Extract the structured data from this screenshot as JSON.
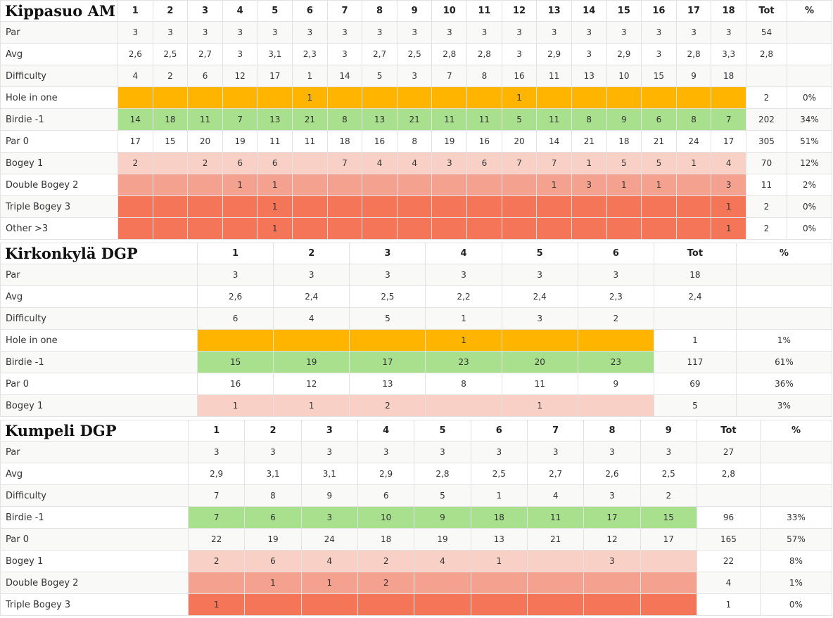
{
  "courses": [
    {
      "name": "Kippasuo AM",
      "holes": [
        "1",
        "2",
        "3",
        "4",
        "5",
        "6",
        "7",
        "8",
        "9",
        "10",
        "11",
        "12",
        "13",
        "14",
        "15",
        "16",
        "17",
        "18"
      ],
      "tot_label": "Tot",
      "pct_label": "%",
      "rows": [
        {
          "label": "Par",
          "type": "par",
          "values": [
            "3",
            "3",
            "3",
            "3",
            "3",
            "3",
            "3",
            "3",
            "3",
            "3",
            "3",
            "3",
            "3",
            "3",
            "3",
            "3",
            "3",
            "3"
          ],
          "tot": "54",
          "pct": ""
        },
        {
          "label": "Avg",
          "type": "avg",
          "values": [
            "2,6",
            "2,5",
            "2,7",
            "3",
            "3,1",
            "2,3",
            "3",
            "2,7",
            "2,5",
            "2,8",
            "2,8",
            "3",
            "2,9",
            "3",
            "2,9",
            "3",
            "2,8",
            "3,3"
          ],
          "tot": "2,8",
          "pct": ""
        },
        {
          "label": "Difficulty",
          "type": "difficulty",
          "values": [
            "4",
            "2",
            "6",
            "12",
            "17",
            "1",
            "14",
            "5",
            "3",
            "7",
            "8",
            "16",
            "11",
            "13",
            "10",
            "15",
            "9",
            "18"
          ],
          "tot": "",
          "pct": ""
        },
        {
          "label": "Hole in one",
          "type": "hio",
          "values": [
            "",
            "",
            "",
            "",
            "",
            "1",
            "",
            "",
            "",
            "",
            "",
            "1",
            "",
            "",
            "",
            "",
            "",
            ""
          ],
          "tot": "2",
          "pct": "0%"
        },
        {
          "label": "Birdie -1",
          "type": "birdie",
          "values": [
            "14",
            "18",
            "11",
            "7",
            "13",
            "21",
            "8",
            "13",
            "21",
            "11",
            "11",
            "5",
            "11",
            "8",
            "9",
            "6",
            "8",
            "7"
          ],
          "tot": "202",
          "pct": "34%"
        },
        {
          "label": "Par 0",
          "type": "parscore",
          "values": [
            "17",
            "15",
            "20",
            "19",
            "11",
            "11",
            "18",
            "16",
            "8",
            "19",
            "16",
            "20",
            "14",
            "21",
            "18",
            "21",
            "24",
            "17"
          ],
          "tot": "305",
          "pct": "51%"
        },
        {
          "label": "Bogey 1",
          "type": "bogey",
          "values": [
            "2",
            "",
            "2",
            "6",
            "6",
            "",
            "7",
            "4",
            "4",
            "3",
            "6",
            "7",
            "7",
            "1",
            "5",
            "5",
            "1",
            "4"
          ],
          "tot": "70",
          "pct": "12%"
        },
        {
          "label": "Double Bogey 2",
          "type": "double",
          "values": [
            "",
            "",
            "",
            "1",
            "1",
            "",
            "",
            "",
            "",
            "",
            "",
            "",
            "1",
            "3",
            "1",
            "1",
            "",
            "3"
          ],
          "tot": "11",
          "pct": "2%"
        },
        {
          "label": "Triple Bogey 3",
          "type": "triple",
          "values": [
            "",
            "",
            "",
            "",
            "1",
            "",
            "",
            "",
            "",
            "",
            "",
            "",
            "",
            "",
            "",
            "",
            "",
            "1"
          ],
          "tot": "2",
          "pct": "0%"
        },
        {
          "label": "Other >3",
          "type": "other",
          "values": [
            "",
            "",
            "",
            "",
            "1",
            "",
            "",
            "",
            "",
            "",
            "",
            "",
            "",
            "",
            "",
            "",
            "",
            "1"
          ],
          "tot": "2",
          "pct": "0%"
        }
      ]
    },
    {
      "name": "Kirkonkylä DGP",
      "holes": [
        "1",
        "2",
        "3",
        "4",
        "5",
        "6"
      ],
      "tot_label": "Tot",
      "pct_label": "%",
      "rows": [
        {
          "label": "Par",
          "type": "par",
          "values": [
            "3",
            "3",
            "3",
            "3",
            "3",
            "3"
          ],
          "tot": "18",
          "pct": ""
        },
        {
          "label": "Avg",
          "type": "avg",
          "values": [
            "2,6",
            "2,4",
            "2,5",
            "2,2",
            "2,4",
            "2,3"
          ],
          "tot": "2,4",
          "pct": ""
        },
        {
          "label": "Difficulty",
          "type": "difficulty",
          "values": [
            "6",
            "4",
            "5",
            "1",
            "3",
            "2"
          ],
          "tot": "",
          "pct": ""
        },
        {
          "label": "Hole in one",
          "type": "hio",
          "values": [
            "",
            "",
            "",
            "1",
            "",
            ""
          ],
          "tot": "1",
          "pct": "1%"
        },
        {
          "label": "Birdie -1",
          "type": "birdie",
          "values": [
            "15",
            "19",
            "17",
            "23",
            "20",
            "23"
          ],
          "tot": "117",
          "pct": "61%"
        },
        {
          "label": "Par 0",
          "type": "parscore",
          "values": [
            "16",
            "12",
            "13",
            "8",
            "11",
            "9"
          ],
          "tot": "69",
          "pct": "36%"
        },
        {
          "label": "Bogey 1",
          "type": "bogey",
          "values": [
            "1",
            "1",
            "2",
            "",
            "1",
            ""
          ],
          "tot": "5",
          "pct": "3%"
        }
      ]
    },
    {
      "name": "Kumpeli DGP",
      "holes": [
        "1",
        "2",
        "3",
        "4",
        "5",
        "6",
        "7",
        "8",
        "9"
      ],
      "tot_label": "Tot",
      "pct_label": "%",
      "rows": [
        {
          "label": "Par",
          "type": "par",
          "values": [
            "3",
            "3",
            "3",
            "3",
            "3",
            "3",
            "3",
            "3",
            "3"
          ],
          "tot": "27",
          "pct": ""
        },
        {
          "label": "Avg",
          "type": "avg",
          "values": [
            "2,9",
            "3,1",
            "3,1",
            "2,9",
            "2,8",
            "2,5",
            "2,7",
            "2,6",
            "2,5"
          ],
          "tot": "2,8",
          "pct": ""
        },
        {
          "label": "Difficulty",
          "type": "difficulty",
          "values": [
            "7",
            "8",
            "9",
            "6",
            "5",
            "1",
            "4",
            "3",
            "2"
          ],
          "tot": "",
          "pct": ""
        },
        {
          "label": "Birdie -1",
          "type": "birdie",
          "values": [
            "7",
            "6",
            "3",
            "10",
            "9",
            "18",
            "11",
            "17",
            "15"
          ],
          "tot": "96",
          "pct": "33%"
        },
        {
          "label": "Par 0",
          "type": "parscore",
          "values": [
            "22",
            "19",
            "24",
            "18",
            "19",
            "13",
            "21",
            "12",
            "17"
          ],
          "tot": "165",
          "pct": "57%"
        },
        {
          "label": "Bogey 1",
          "type": "bogey",
          "values": [
            "2",
            "6",
            "4",
            "2",
            "4",
            "1",
            "",
            "3",
            ""
          ],
          "tot": "22",
          "pct": "8%"
        },
        {
          "label": "Double Bogey 2",
          "type": "double",
          "values": [
            "",
            "1",
            "1",
            "2",
            "",
            "",
            "",
            "",
            ""
          ],
          "tot": "4",
          "pct": "1%"
        },
        {
          "label": "Triple Bogey 3",
          "type": "triple",
          "values": [
            "1",
            "",
            "",
            "",
            "",
            "",
            "",
            "",
            ""
          ],
          "tot": "1",
          "pct": "0%"
        }
      ]
    }
  ]
}
